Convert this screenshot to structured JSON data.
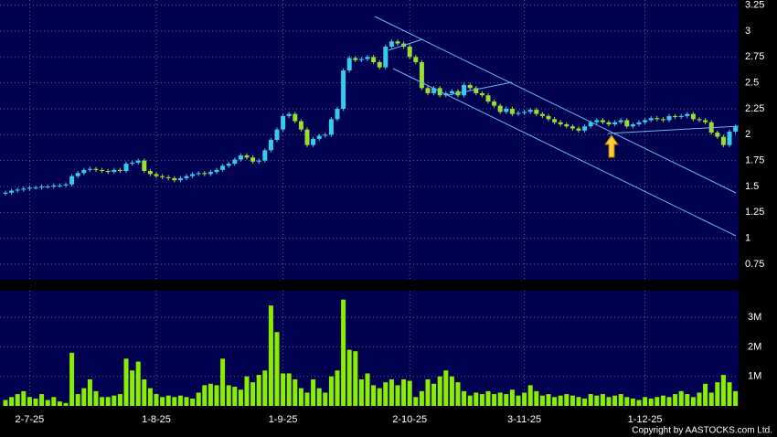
{
  "chart_data": [
    {
      "type": "candlestick",
      "open": [
        1.43,
        1.44,
        1.46,
        1.47,
        1.48,
        1.49,
        1.49,
        1.5,
        1.5,
        1.51,
        1.51,
        1.52,
        1.6,
        1.63,
        1.66,
        1.67,
        1.66,
        1.65,
        1.64,
        1.66,
        1.65,
        1.72,
        1.73,
        1.75,
        1.65,
        1.62,
        1.6,
        1.59,
        1.58,
        1.56,
        1.58,
        1.6,
        1.62,
        1.63,
        1.62,
        1.64,
        1.66,
        1.7,
        1.72,
        1.76,
        1.8,
        1.78,
        1.74,
        1.75,
        1.85,
        1.95,
        2.05,
        2.18,
        2.2,
        2.13,
        2.05,
        1.9,
        1.96,
        1.99,
        2.0,
        2.15,
        2.25,
        2.62,
        2.74,
        2.72,
        2.73,
        2.75,
        2.7,
        2.65,
        2.85,
        2.9,
        2.88,
        2.85,
        2.75,
        2.7,
        2.45,
        2.4,
        2.45,
        2.38,
        2.4,
        2.42,
        2.38,
        2.48,
        2.45,
        2.4,
        2.38,
        2.32,
        2.28,
        2.22,
        2.25,
        2.2,
        2.21,
        2.22,
        2.24,
        2.2,
        2.18,
        2.15,
        2.12,
        2.1,
        2.08,
        2.06,
        2.04,
        2.08,
        2.12,
        2.14,
        2.12,
        2.1,
        2.12,
        2.14,
        2.08,
        2.1,
        2.12,
        2.14,
        2.16,
        2.15,
        2.14,
        2.18,
        2.17,
        2.18,
        2.2,
        2.15,
        2.14,
        2.12,
        2.02,
        1.98,
        1.9,
        2.03
      ],
      "high": [
        1.46,
        1.48,
        1.49,
        1.5,
        1.51,
        1.51,
        1.52,
        1.52,
        1.53,
        1.53,
        1.54,
        1.62,
        1.65,
        1.68,
        1.69,
        1.69,
        1.68,
        1.67,
        1.68,
        1.68,
        1.74,
        1.75,
        1.77,
        1.77,
        1.67,
        1.64,
        1.62,
        1.61,
        1.6,
        1.6,
        1.62,
        1.64,
        1.65,
        1.65,
        1.66,
        1.68,
        1.72,
        1.74,
        1.78,
        1.82,
        1.82,
        1.8,
        1.77,
        1.87,
        1.97,
        2.07,
        2.2,
        2.22,
        2.22,
        2.15,
        2.07,
        1.98,
        2.01,
        2.02,
        2.17,
        2.27,
        2.64,
        2.76,
        2.76,
        2.75,
        2.77,
        2.77,
        2.72,
        2.87,
        2.92,
        2.92,
        2.9,
        2.87,
        2.77,
        2.72,
        2.47,
        2.47,
        2.47,
        2.42,
        2.44,
        2.44,
        2.5,
        2.5,
        2.47,
        2.42,
        2.4,
        2.34,
        2.3,
        2.27,
        2.27,
        2.23,
        2.24,
        2.26,
        2.26,
        2.22,
        2.2,
        2.17,
        2.14,
        2.12,
        2.1,
        2.08,
        2.1,
        2.14,
        2.16,
        2.16,
        2.14,
        2.14,
        2.16,
        2.16,
        2.12,
        2.14,
        2.16,
        2.18,
        2.18,
        2.17,
        2.2,
        2.2,
        2.2,
        2.22,
        2.22,
        2.17,
        2.16,
        2.14,
        2.04,
        2.0,
        2.05,
        2.1
      ],
      "low": [
        1.41,
        1.42,
        1.44,
        1.45,
        1.46,
        1.47,
        1.47,
        1.48,
        1.48,
        1.49,
        1.49,
        1.5,
        1.58,
        1.61,
        1.64,
        1.64,
        1.63,
        1.62,
        1.62,
        1.63,
        1.63,
        1.7,
        1.71,
        1.63,
        1.6,
        1.58,
        1.57,
        1.56,
        1.54,
        1.54,
        1.56,
        1.58,
        1.6,
        1.6,
        1.6,
        1.62,
        1.64,
        1.68,
        1.7,
        1.74,
        1.76,
        1.72,
        1.72,
        1.73,
        1.83,
        1.93,
        2.03,
        2.16,
        2.11,
        2.03,
        1.88,
        1.88,
        1.94,
        1.97,
        1.98,
        2.13,
        2.23,
        2.6,
        2.7,
        2.7,
        2.71,
        2.68,
        2.63,
        2.63,
        2.83,
        2.86,
        2.83,
        2.73,
        2.68,
        2.43,
        2.38,
        2.38,
        2.36,
        2.36,
        2.38,
        2.36,
        2.36,
        2.43,
        2.38,
        2.36,
        2.3,
        2.26,
        2.2,
        2.2,
        2.18,
        2.18,
        2.19,
        2.2,
        2.18,
        2.16,
        2.13,
        2.1,
        2.08,
        2.06,
        2.04,
        2.02,
        2.02,
        2.06,
        2.1,
        2.1,
        2.08,
        2.08,
        2.1,
        2.06,
        2.06,
        2.08,
        2.1,
        2.12,
        2.13,
        2.12,
        2.12,
        2.15,
        2.15,
        2.16,
        2.13,
        2.12,
        2.1,
        2.0,
        1.96,
        1.88,
        1.88,
        2.01
      ],
      "close": [
        1.44,
        1.46,
        1.47,
        1.48,
        1.49,
        1.49,
        1.5,
        1.5,
        1.51,
        1.51,
        1.52,
        1.6,
        1.63,
        1.66,
        1.67,
        1.66,
        1.65,
        1.64,
        1.66,
        1.65,
        1.72,
        1.73,
        1.75,
        1.65,
        1.62,
        1.6,
        1.59,
        1.58,
        1.56,
        1.58,
        1.6,
        1.62,
        1.63,
        1.62,
        1.64,
        1.66,
        1.7,
        1.72,
        1.76,
        1.8,
        1.78,
        1.74,
        1.75,
        1.85,
        1.95,
        2.05,
        2.18,
        2.2,
        2.13,
        2.05,
        1.9,
        1.96,
        1.99,
        2.0,
        2.15,
        2.25,
        2.62,
        2.74,
        2.72,
        2.73,
        2.75,
        2.7,
        2.65,
        2.85,
        2.9,
        2.88,
        2.85,
        2.75,
        2.7,
        2.45,
        2.4,
        2.45,
        2.38,
        2.4,
        2.42,
        2.38,
        2.48,
        2.45,
        2.4,
        2.38,
        2.32,
        2.28,
        2.22,
        2.25,
        2.2,
        2.21,
        2.22,
        2.24,
        2.2,
        2.18,
        2.15,
        2.12,
        2.1,
        2.08,
        2.06,
        2.04,
        2.08,
        2.12,
        2.14,
        2.12,
        2.1,
        2.12,
        2.14,
        2.08,
        2.1,
        2.12,
        2.14,
        2.16,
        2.15,
        2.14,
        2.18,
        2.17,
        2.18,
        2.2,
        2.15,
        2.14,
        2.12,
        2.02,
        1.98,
        1.9,
        2.03,
        2.08
      ],
      "up_color": "#33ccee",
      "down_color": "#99dd33",
      "ylim": [
        0.6,
        3.3
      ],
      "yticks": [
        0.75,
        1,
        1.25,
        1.5,
        1.75,
        2,
        2.25,
        2.5,
        2.75,
        3,
        3.25
      ],
      "grid": true
    },
    {
      "type": "bar",
      "categories": [
        null,
        null,
        null,
        null,
        "2-7-25",
        null,
        null,
        null,
        null,
        null,
        null,
        null,
        null,
        null,
        null,
        null,
        null,
        null,
        null,
        null,
        null,
        null,
        null,
        null,
        null,
        "1-8-25",
        null,
        null,
        null,
        null,
        null,
        null,
        null,
        null,
        null,
        null,
        null,
        null,
        null,
        null,
        null,
        null,
        null,
        null,
        null,
        null,
        "1-9-25",
        null,
        null,
        null,
        null,
        null,
        null,
        null,
        null,
        null,
        null,
        null,
        null,
        null,
        null,
        null,
        null,
        null,
        null,
        null,
        null,
        "2-10-25",
        null,
        null,
        null,
        null,
        null,
        null,
        null,
        null,
        null,
        null,
        null,
        null,
        null,
        null,
        null,
        null,
        null,
        null,
        "3-11-25",
        null,
        null,
        null,
        null,
        null,
        null,
        null,
        null,
        null,
        null,
        null,
        null,
        null,
        null,
        null,
        null,
        null,
        null,
        null,
        "1-12-25",
        null,
        null,
        null,
        null,
        null,
        null,
        null,
        null,
        null,
        null,
        null,
        null,
        null,
        null,
        null
      ],
      "values": [
        0.2,
        0.3,
        0.4,
        0.5,
        0.3,
        0.25,
        0.4,
        0.2,
        0.3,
        0.15,
        0.1,
        1.8,
        0.4,
        0.6,
        0.9,
        0.5,
        0.3,
        0.3,
        0.35,
        0.4,
        1.6,
        1.2,
        1.5,
        0.9,
        0.6,
        0.4,
        0.3,
        0.35,
        0.3,
        0.35,
        0.3,
        0.25,
        0.45,
        0.7,
        0.75,
        0.7,
        1.6,
        0.7,
        0.65,
        0.55,
        1.0,
        0.8,
        1.05,
        1.2,
        3.4,
        2.5,
        1.1,
        1.1,
        0.9,
        0.6,
        0.45,
        0.9,
        0.6,
        0.45,
        1.0,
        1.2,
        3.6,
        1.9,
        1.85,
        0.9,
        1.1,
        0.7,
        0.6,
        0.8,
        0.9,
        0.7,
        0.9,
        0.85,
        0.3,
        0.5,
        0.9,
        0.75,
        1.0,
        1.2,
        1.0,
        0.8,
        0.5,
        0.35,
        0.45,
        0.4,
        0.5,
        0.4,
        0.45,
        0.4,
        0.55,
        0.35,
        0.45,
        0.7,
        0.5,
        0.35,
        0.4,
        0.3,
        0.35,
        0.4,
        0.35,
        0.3,
        0.25,
        0.4,
        0.35,
        0.4,
        0.3,
        0.35,
        0.4,
        0.3,
        0.25,
        0.2,
        0.3,
        0.25,
        0.3,
        0.35,
        0.3,
        0.4,
        0.5,
        0.4,
        0.3,
        0.45,
        0.75,
        0.45,
        0.8,
        1.05,
        0.8,
        0.5
      ],
      "color": "#88ee00",
      "ylim": [
        0,
        3.9
      ],
      "yticks": [
        {
          "value": 1,
          "label": "1M"
        },
        {
          "value": 2,
          "label": "2M"
        },
        {
          "value": 3,
          "label": "3M"
        }
      ],
      "grid": true
    }
  ],
  "copyright": "Copyright by AASTOCKS.com Ltd."
}
